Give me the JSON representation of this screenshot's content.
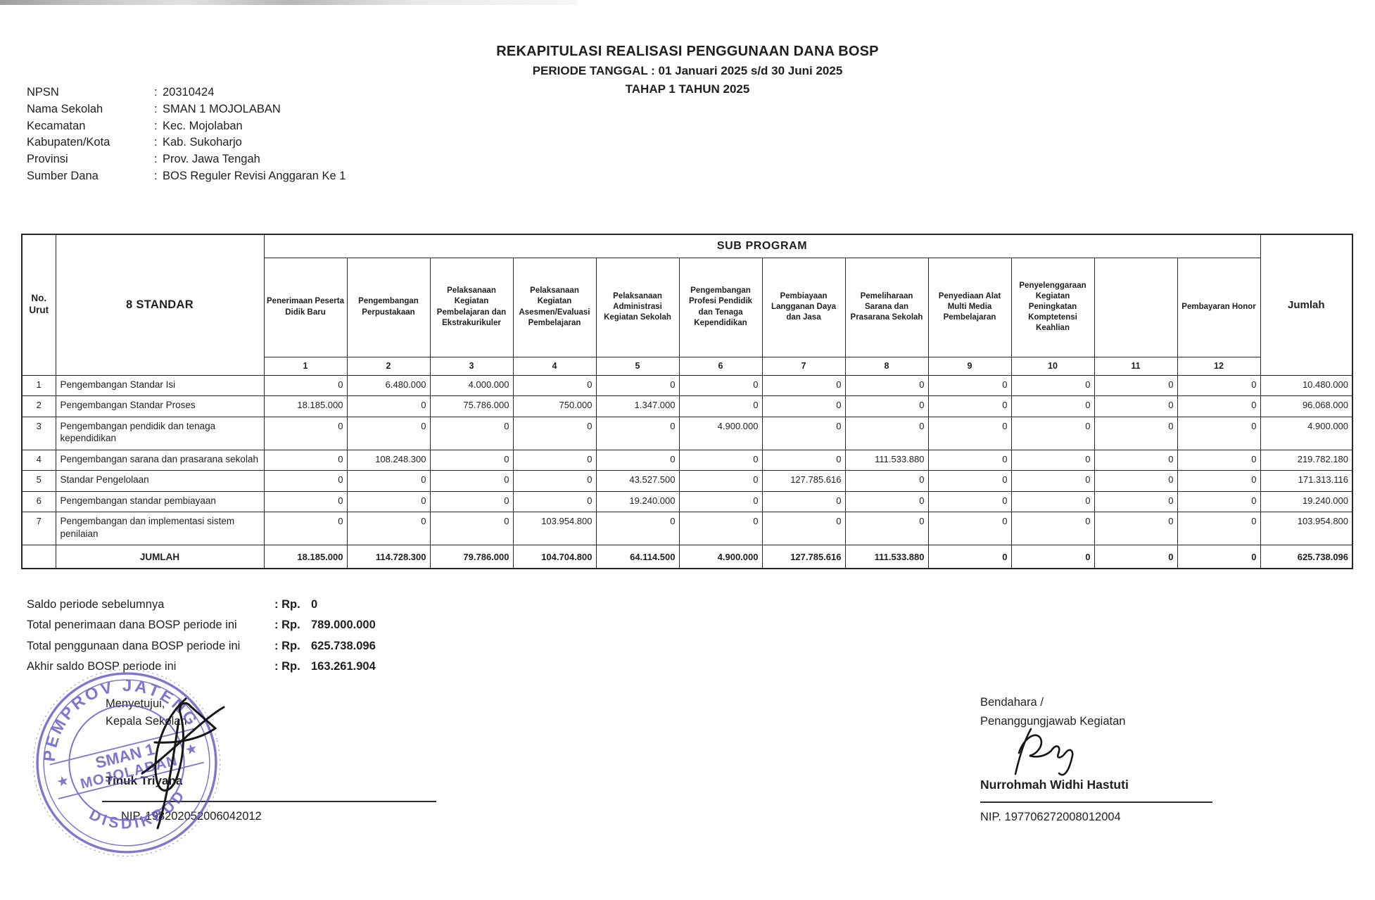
{
  "header": {
    "title": "REKAPITULASI REALISASI PENGGUNAAN DANA BOSP",
    "subtitle1": "PERIODE TANGGAL : 01 Januari 2025 s/d 30 Juni 2025",
    "subtitle2": "TAHAP 1 TAHUN 2025"
  },
  "school_info": {
    "separator": ":",
    "rows": [
      {
        "label": "NPSN",
        "value": "20310424"
      },
      {
        "label": "Nama Sekolah",
        "value": "SMAN 1 MOJOLABAN"
      },
      {
        "label": "Kecamatan",
        "value": "Kec. Mojolaban"
      },
      {
        "label": "Kabupaten/Kota",
        "value": "Kab. Sukoharjo"
      },
      {
        "label": "Provinsi",
        "value": "Prov. Jawa Tengah"
      },
      {
        "label": "Sumber Dana",
        "value": "BOS Reguler Revisi Anggaran Ke 1"
      }
    ]
  },
  "table": {
    "corner_header_line1": "No.",
    "corner_header_line2": "Urut",
    "standar_header": "8 STANDAR",
    "group_header": "SUB PROGRAM",
    "jumlah_header": "Jumlah",
    "columns": [
      {
        "num": "1",
        "label": "Penerimaan Peserta Didik Baru"
      },
      {
        "num": "2",
        "label": "Pengembangan Perpustakaan"
      },
      {
        "num": "3",
        "label": "Pelaksanaan Kegiatan Pembelajaran dan Ekstrakurikuler"
      },
      {
        "num": "4",
        "label": "Pelaksanaan Kegiatan Asesmen/Evaluasi Pembelajaran"
      },
      {
        "num": "5",
        "label": "Pelaksanaan Administrasi Kegiatan Sekolah"
      },
      {
        "num": "6",
        "label": "Pengembangan Profesi Pendidik dan Tenaga Kependidikan"
      },
      {
        "num": "7",
        "label": "Pembiayaan Langganan Daya dan Jasa"
      },
      {
        "num": "8",
        "label": "Pemeliharaan Sarana dan Prasarana Sekolah"
      },
      {
        "num": "9",
        "label": "Penyediaan Alat Multi Media Pembelajaran"
      },
      {
        "num": "10",
        "label": "Penyelenggaraan Kegiatan Peningkatan Komptetensi Keahlian"
      },
      {
        "num": "11",
        "label": ""
      },
      {
        "num": "12",
        "label": "Pembayaran Honor"
      }
    ],
    "rows": [
      {
        "no": "1",
        "name": "Pengembangan Standar Isi",
        "values": [
          "0",
          "6.480.000",
          "4.000.000",
          "0",
          "0",
          "0",
          "0",
          "0",
          "0",
          "0",
          "0",
          "0"
        ],
        "jumlah": "10.480.000"
      },
      {
        "no": "2",
        "name": "Pengembangan Standar Proses",
        "values": [
          "18.185.000",
          "0",
          "75.786.000",
          "750.000",
          "1.347.000",
          "0",
          "0",
          "0",
          "0",
          "0",
          "0",
          "0"
        ],
        "jumlah": "96.068.000"
      },
      {
        "no": "3",
        "name": "Pengembangan pendidik dan tenaga kependidikan",
        "values": [
          "0",
          "0",
          "0",
          "0",
          "0",
          "4.900.000",
          "0",
          "0",
          "0",
          "0",
          "0",
          "0"
        ],
        "jumlah": "4.900.000"
      },
      {
        "no": "4",
        "name": "Pengembangan sarana dan prasarana sekolah",
        "values": [
          "0",
          "108.248.300",
          "0",
          "0",
          "0",
          "0",
          "0",
          "111.533.880",
          "0",
          "0",
          "0",
          "0"
        ],
        "jumlah": "219.782.180"
      },
      {
        "no": "5",
        "name": "Standar Pengelolaan",
        "values": [
          "0",
          "0",
          "0",
          "0",
          "43.527.500",
          "0",
          "127.785.616",
          "0",
          "0",
          "0",
          "0",
          "0"
        ],
        "jumlah": "171.313.116"
      },
      {
        "no": "6",
        "name": "Pengembangan standar pembiayaan",
        "values": [
          "0",
          "0",
          "0",
          "0",
          "19.240.000",
          "0",
          "0",
          "0",
          "0",
          "0",
          "0",
          "0"
        ],
        "jumlah": "19.240.000"
      },
      {
        "no": "7",
        "name": "Pengembangan dan implementasi sistem penilaian",
        "values": [
          "0",
          "0",
          "0",
          "103.954.800",
          "0",
          "0",
          "0",
          "0",
          "0",
          "0",
          "0",
          "0"
        ],
        "jumlah": "103.954.800"
      }
    ],
    "total": {
      "label": "JUMLAH",
      "values": [
        "18.185.000",
        "114.728.300",
        "79.786.000",
        "104.704.800",
        "64.114.500",
        "4.900.000",
        "127.785.616",
        "111.533.880",
        "0",
        "0",
        "0",
        "0"
      ],
      "jumlah": "625.738.096"
    }
  },
  "summary": {
    "currency": ": Rp.",
    "rows": [
      {
        "label": "Saldo periode sebelumnya",
        "value": "0"
      },
      {
        "label": "Total penerimaan dana BOSP periode ini",
        "value": "789.000.000"
      },
      {
        "label": "Total penggunaan dana BOSP periode ini",
        "value": "625.738.096"
      },
      {
        "label": "Akhir saldo BOSP periode ini",
        "value": "163.261.904"
      }
    ]
  },
  "signatures": {
    "left": {
      "line1": "Menyetujui,",
      "line2": "Kepala Sekolah",
      "name": "Tinuk Triyana",
      "nip": "NIP. 198202052006042012"
    },
    "right": {
      "line1": "Bendahara /",
      "line2": "Penanggungjawab Kegiatan",
      "name": "Nurrohmah Widhi Hastuti",
      "nip": "NIP. 197706272008012004"
    }
  },
  "stamp": {
    "arc_top": "PEMPROV JATENG",
    "center_line1": "SMAN 1",
    "center_line2": "MOJOLABAN",
    "arc_bottom": "DISDIKBUD",
    "color": "#5b50c5"
  }
}
